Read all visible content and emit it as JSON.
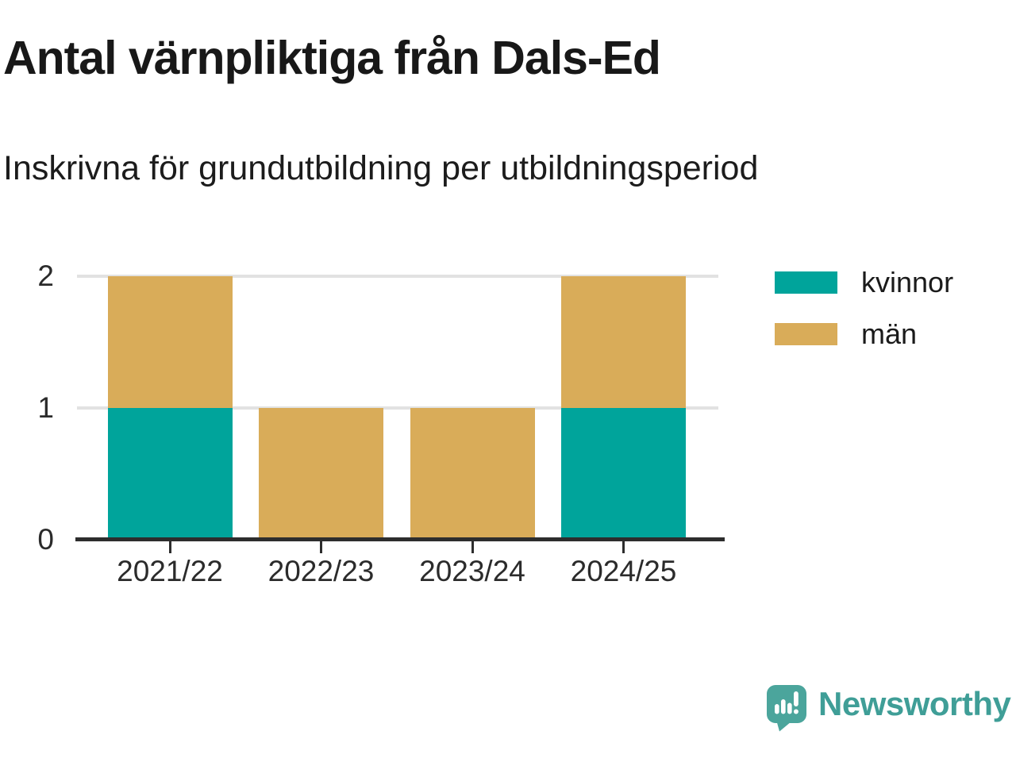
{
  "header": {
    "title": "Antal värnpliktiga från Dals-Ed",
    "subtitle": "Inskrivna för grundutbildning per utbildningsperiod"
  },
  "chart_data": {
    "type": "bar",
    "stacked": true,
    "title": "Antal värnpliktiga från Dals-Ed",
    "subtitle": "Inskrivna för grundutbildning per utbildningsperiod",
    "categories": [
      "2021/22",
      "2022/23",
      "2023/24",
      "2024/25"
    ],
    "series": [
      {
        "name": "kvinnor",
        "color": "#00a49b",
        "values": [
          1,
          0,
          0,
          1
        ]
      },
      {
        "name": "män",
        "color": "#d9ac59",
        "values": [
          1,
          1,
          1,
          1
        ]
      }
    ],
    "totals": [
      2,
      1,
      1,
      2
    ],
    "xlabel": "",
    "ylabel": "",
    "yticks": [
      0,
      1,
      2
    ],
    "ylim": [
      0,
      2
    ],
    "grid": "horizontal",
    "legend_position": "top-right"
  },
  "footer": {
    "brand": "Newsworthy"
  },
  "colors": {
    "kvinnor": "#00a49b",
    "man": "#d9ac59",
    "axis": "#2d2d2d",
    "gridline": "#e2e2e2",
    "brand_teal": "#3f9e97",
    "logo_bubble": "#4ba59c",
    "background": "#ffffff"
  }
}
